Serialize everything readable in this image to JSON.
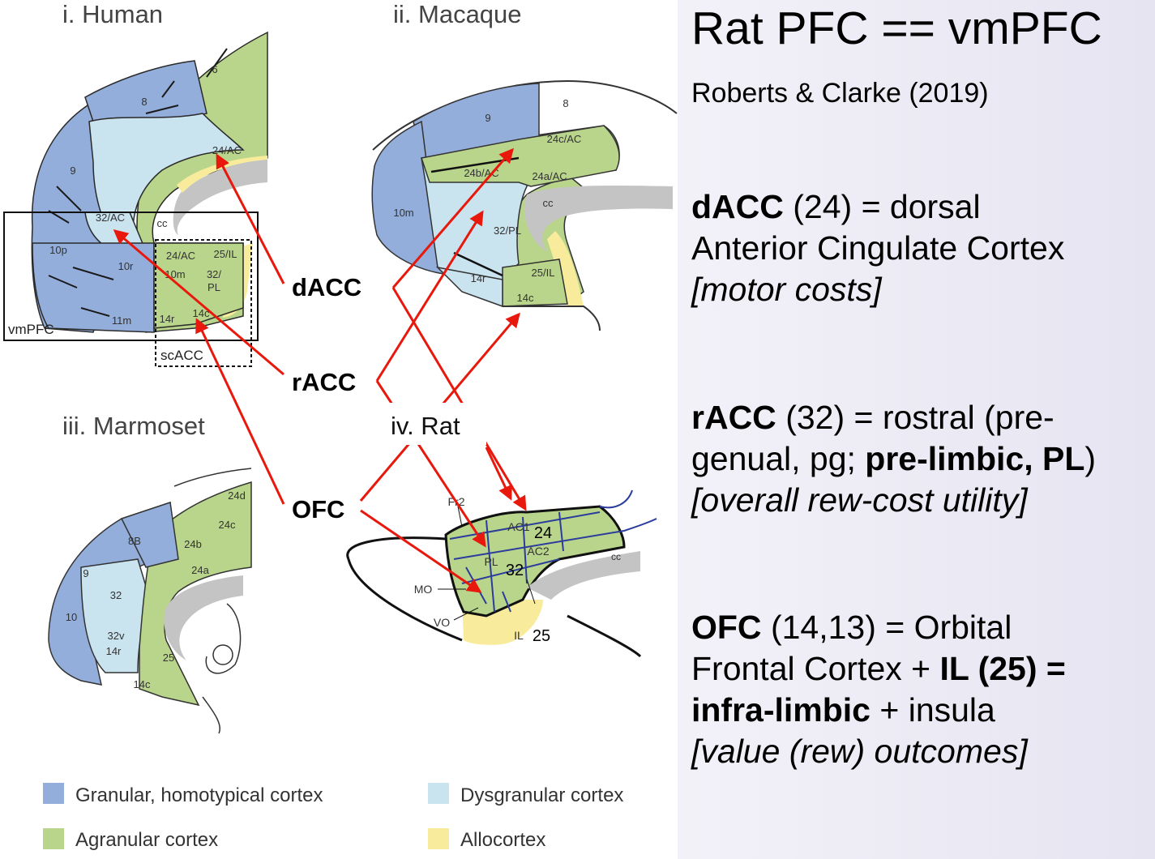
{
  "slide": {
    "title": "Rat PFC == vmPFC",
    "citation": "Roberts & Clarke (2019)"
  },
  "panels": {
    "human": "i. Human",
    "macaque": "ii. Macaque",
    "marmoset": "iii. Marmoset",
    "rat": "iv. Rat"
  },
  "region_labels": {
    "human": [
      "6",
      "8",
      "24/AC",
      "9",
      "32/AC",
      "cc",
      "10p",
      "10r",
      "24/AC",
      "25/IL",
      "10m",
      "32/",
      "PL",
      "11m",
      "14r",
      "14c",
      "vmPFC",
      "scACC"
    ],
    "macaque": [
      "8",
      "9",
      "24c/AC",
      "24b/AC",
      "24a/AC",
      "cc",
      "10m",
      "32/PL",
      "14r",
      "25/IL",
      "14c"
    ],
    "marmoset": [
      "24d",
      "8B",
      "24c",
      "24b",
      "24a",
      "9",
      "32",
      "10",
      "32v",
      "14r",
      "25",
      "14c"
    ],
    "rat": [
      "Fr2",
      "AC1",
      "24",
      "AC2",
      "cc",
      "PL",
      "32",
      "MO",
      "VO",
      "IL",
      "25"
    ]
  },
  "arrow_labels": {
    "dacc": "dACC",
    "racc": "rACC",
    "ofc": "OFC"
  },
  "legend": {
    "granular": "Granular, homotypical cortex",
    "dysgranular": "Dysgranular cortex",
    "agranular": "Agranular cortex",
    "allocortex": "Allocortex"
  },
  "colors": {
    "granular": "#93aedb",
    "dysgranular": "#c9e3ef",
    "agranular": "#b9d58b",
    "allocortex": "#f8ec9c",
    "corpus_callosum": "#c4c4c4",
    "arrow": "#e8180c"
  },
  "definitions": {
    "dacc": {
      "abbr": "dACC",
      "l1": " (24) = dorsal",
      "l2": "Anterior Cingulate Cortex",
      "l3": "[motor costs]"
    },
    "racc": {
      "abbr": "rACC",
      "l1": " (32) = rostral (pre-",
      "l2a": "genual, pg; ",
      "l2b": "pre-limbic, PL",
      "l2c": ")",
      "l3": "[overall rew-cost utility]"
    },
    "ofc": {
      "abbr": "OFC",
      "l1": " (14,13) = Orbital",
      "l2a": "Frontal Cortex + ",
      "l2b": "IL (25) =",
      "l3a": "infra-limbic",
      "l3b": " + insula",
      "l4": "[value (rew) outcomes]"
    }
  }
}
